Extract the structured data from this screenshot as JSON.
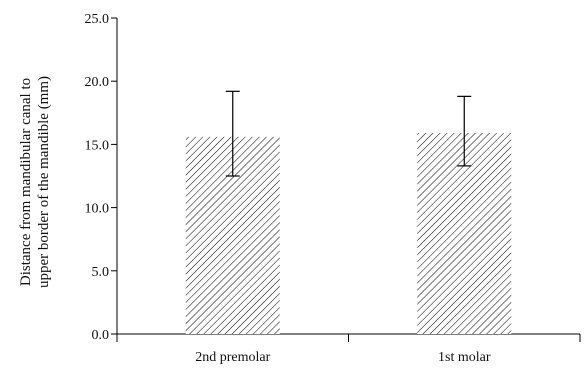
{
  "chart_data": {
    "type": "bar",
    "categories": [
      "2nd premolar",
      "1st molar"
    ],
    "values": [
      15.6,
      15.9
    ],
    "error_low": [
      12.5,
      13.3
    ],
    "error_high": [
      19.2,
      18.8
    ],
    "ylabel_lines": [
      "Distance from mandibular canal to",
      "upper border of the mandible (mm)"
    ],
    "xlabel": "",
    "title": "",
    "ylim": [
      0,
      25
    ],
    "yticks": [
      "0.0",
      "5.0",
      "10.0",
      "15.0",
      "20.0",
      "25.0"
    ],
    "grid": false,
    "legend": "none",
    "bar_fill": "diagonal-hatch",
    "colors": {
      "bar_hatch": "#000000",
      "axis": "#000000"
    }
  }
}
